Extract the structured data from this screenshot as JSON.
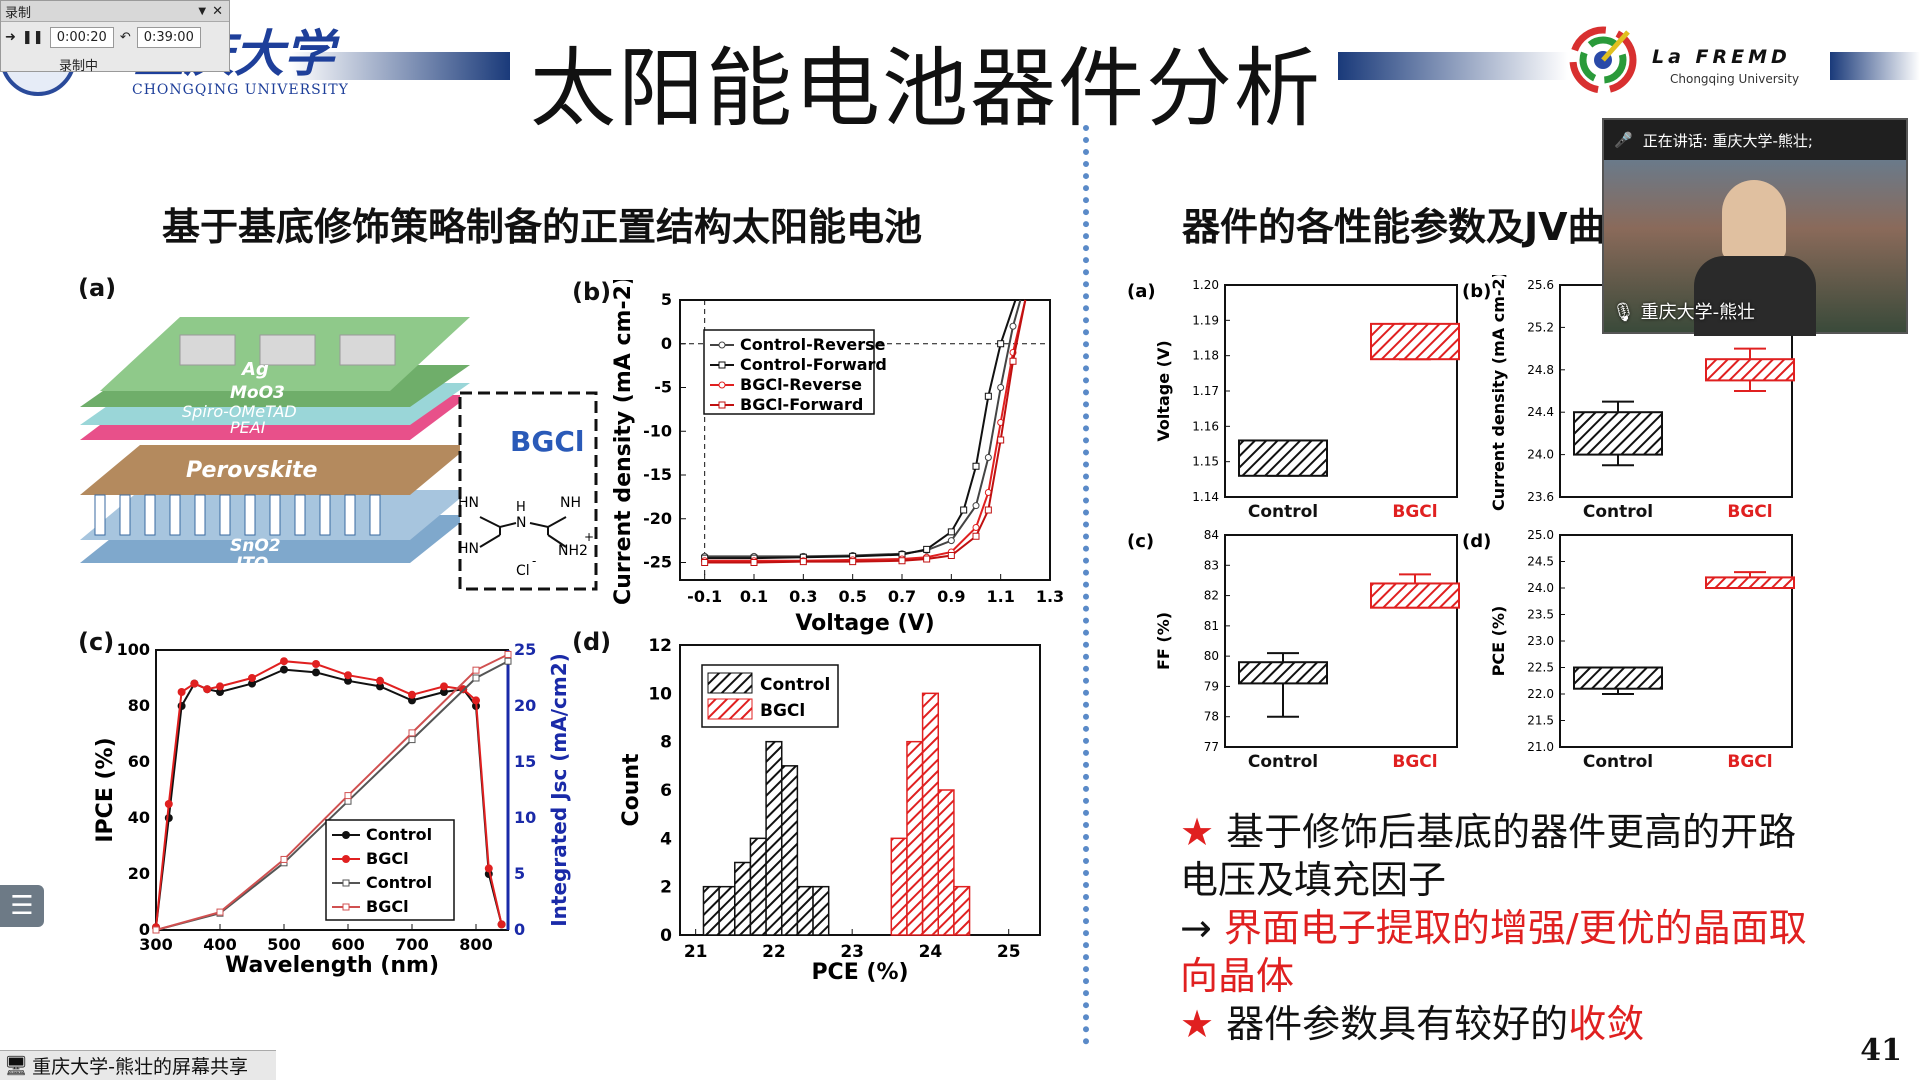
{
  "recorder": {
    "title": "录制",
    "elapsed": "0:00:20",
    "total": "0:39:00",
    "status": "录制中"
  },
  "header": {
    "university_cn": "重庆大学",
    "university_en": "CHONGQING UNIVERSITY",
    "title": "太阳能电池器件分析",
    "lab_name": "La FREMD",
    "lab_sub": "Chongqing University"
  },
  "left_subtitle": "基于基底修饰策略制备的正置结构太阳能电池",
  "right_subtitle": "器件的各性能参数及JV曲",
  "panel_a": {
    "label": "(a)",
    "layers": [
      "Ag",
      "MoO3",
      "Spiro-OMeTAD",
      "PEAI",
      "Perovskite",
      "SnO2",
      "ITO"
    ],
    "molecule": "BGCl",
    "chem": [
      "HN",
      "H",
      "N",
      "NH",
      "HN",
      "NH2",
      "+",
      "Cl",
      "-"
    ]
  },
  "panel_b": {
    "label": "(b)",
    "xlabel": "Voltage (V)",
    "ylabel": "Current density (mA cm",
    "ylabel_sup": "-2",
    "ylabel_end": ")",
    "xticks": [
      "-0.1",
      "0.1",
      "0.3",
      "0.5",
      "0.7",
      "0.9",
      "1.1",
      "1.3"
    ],
    "yticks": [
      "5",
      "0",
      "-5",
      "-10",
      "-15",
      "-20",
      "-25"
    ],
    "legend": [
      "Control-Reverse",
      "Control-Forward",
      "BGCl-Reverse",
      "BGCl-Forward"
    ]
  },
  "panel_c": {
    "label": "(c)",
    "xlabel": "Wavelength (nm)",
    "ylabel": "IPCE (%)",
    "y2label": "Integrated Jsc (mA/cm",
    "y2label_sup": "2",
    "y2label_end": ")",
    "xticks": [
      "300",
      "400",
      "500",
      "600",
      "700",
      "800"
    ],
    "yticks": [
      "0",
      "20",
      "40",
      "60",
      "80",
      "100"
    ],
    "y2ticks": [
      "0",
      "5",
      "10",
      "15",
      "20",
      "25"
    ],
    "legend": [
      "Control",
      "BGCl",
      "Control",
      "BGCl"
    ]
  },
  "panel_d": {
    "label": "(d)",
    "xlabel": "PCE (%)",
    "ylabel": "Count",
    "xticks": [
      "21",
      "22",
      "23",
      "24",
      "25"
    ],
    "yticks": [
      "0",
      "2",
      "4",
      "6",
      "8",
      "10",
      "12"
    ],
    "legend": [
      "Control",
      "BGCl"
    ]
  },
  "box_plots": [
    {
      "label": "(a)",
      "ylabel": "Voltage (V)",
      "yticks": [
        "1.14",
        "1.15",
        "1.16",
        "1.17",
        "1.18",
        "1.19",
        "1.20"
      ],
      "categories": [
        "Control",
        "BGCl"
      ]
    },
    {
      "label": "(b)",
      "ylabel": "Current density (mA cm",
      "ylabel_sup": "-2",
      "ylabel_end": ")",
      "yticks": [
        "23.6",
        "24.0",
        "24.4",
        "24.8",
        "25.2",
        "25.6"
      ],
      "categories": [
        "Control",
        "BGCl"
      ]
    },
    {
      "label": "(c)",
      "ylabel": "FF (%)",
      "yticks": [
        "77",
        "78",
        "79",
        "80",
        "81",
        "82",
        "83",
        "84"
      ],
      "categories": [
        "Control",
        "BGCl"
      ]
    },
    {
      "label": "(d)",
      "ylabel": "PCE (%)",
      "yticks": [
        "21.0",
        "21.5",
        "22.0",
        "22.5",
        "23.0",
        "23.5",
        "24.0",
        "24.5",
        "25.0"
      ],
      "categories": [
        "Control",
        "BGCl"
      ]
    }
  ],
  "notes": {
    "star": "★",
    "line1": "基于修饰后基底的器件更高的开路电压及填充因子",
    "arrow": "→ ",
    "line2_red": "界面电子提取的增强/更优的晶面取向晶体",
    "line3_black": "器件参数具有较好的",
    "line3_red": "收敛"
  },
  "page_number": "41",
  "video": {
    "speaking": "正在讲话: 重庆大学-熊壮;",
    "name": "重庆大学-熊壮"
  },
  "share_label": "重庆大学-熊壮的屏幕共享",
  "chart_data": [
    {
      "type": "line",
      "title": "",
      "xlabel": "Voltage (V)",
      "ylabel": "Current density (mA cm-2)",
      "xlim": [
        -0.2,
        1.3
      ],
      "ylim": [
        -27,
        5
      ],
      "series": [
        {
          "name": "Control-Reverse",
          "x": [
            -0.1,
            0.1,
            0.3,
            0.5,
            0.7,
            0.8,
            0.9,
            1.0,
            1.05,
            1.1,
            1.15,
            1.18
          ],
          "y": [
            -24.3,
            -24.3,
            -24.3,
            -24.2,
            -24.0,
            -23.6,
            -22.5,
            -18.5,
            -13,
            -5,
            2,
            5
          ]
        },
        {
          "name": "Control-Forward",
          "x": [
            -0.1,
            0.1,
            0.3,
            0.5,
            0.7,
            0.8,
            0.9,
            0.95,
            1.0,
            1.05,
            1.1,
            1.16
          ],
          "y": [
            -24.5,
            -24.5,
            -24.4,
            -24.3,
            -24.1,
            -23.5,
            -21.5,
            -19,
            -14,
            -6,
            0,
            5
          ]
        },
        {
          "name": "BGCl-Reverse",
          "x": [
            -0.1,
            0.1,
            0.3,
            0.5,
            0.7,
            0.8,
            0.9,
            1.0,
            1.05,
            1.1,
            1.15,
            1.2
          ],
          "y": [
            -24.8,
            -24.8,
            -24.8,
            -24.7,
            -24.6,
            -24.4,
            -23.8,
            -21,
            -17,
            -9,
            -1,
            5
          ]
        },
        {
          "name": "BGCl-Forward",
          "x": [
            -0.1,
            0.1,
            0.3,
            0.5,
            0.7,
            0.8,
            0.9,
            1.0,
            1.05,
            1.1,
            1.15,
            1.2
          ],
          "y": [
            -25.0,
            -25.0,
            -24.9,
            -24.9,
            -24.8,
            -24.6,
            -24.2,
            -22,
            -19,
            -11,
            -2,
            5
          ]
        }
      ]
    },
    {
      "type": "line",
      "title": "",
      "xlabel": "Wavelength (nm)",
      "ylabel": "IPCE (%)",
      "y2label": "Integrated Jsc (mA/cm2)",
      "xlim": [
        300,
        850
      ],
      "ylim": [
        0,
        100
      ],
      "y2lim": [
        0,
        25
      ],
      "series": [
        {
          "name": "Control",
          "axis": "left",
          "x": [
            300,
            320,
            340,
            360,
            380,
            400,
            450,
            500,
            550,
            600,
            650,
            700,
            750,
            780,
            800,
            820,
            840
          ],
          "y": [
            1,
            40,
            80,
            88,
            86,
            85,
            88,
            93,
            92,
            89,
            87,
            82,
            85,
            86,
            80,
            20,
            2
          ]
        },
        {
          "name": "BGCl",
          "axis": "left",
          "x": [
            300,
            320,
            340,
            360,
            380,
            400,
            450,
            500,
            550,
            600,
            650,
            700,
            750,
            780,
            800,
            820,
            840
          ],
          "y": [
            1,
            45,
            85,
            88,
            86,
            87,
            90,
            96,
            95,
            91,
            89,
            84,
            87,
            86,
            82,
            22,
            2
          ]
        },
        {
          "name": "Control",
          "axis": "right",
          "x": [
            300,
            400,
            500,
            600,
            700,
            800,
            850
          ],
          "y": [
            0,
            1.5,
            6,
            11.5,
            17,
            22.5,
            24.0
          ]
        },
        {
          "name": "BGCl",
          "axis": "right",
          "x": [
            300,
            400,
            500,
            600,
            700,
            800,
            850
          ],
          "y": [
            0,
            1.6,
            6.3,
            12,
            17.6,
            23.2,
            24.6
          ]
        }
      ]
    },
    {
      "type": "bar",
      "title": "",
      "xlabel": "PCE (%)",
      "ylabel": "Count",
      "ylim": [
        0,
        12
      ],
      "series": [
        {
          "name": "Control",
          "x": [
            21.2,
            21.4,
            21.6,
            21.8,
            22.0,
            22.2,
            22.4,
            22.6
          ],
          "values": [
            2,
            2,
            3,
            4,
            8,
            7,
            2,
            2
          ]
        },
        {
          "name": "BGCl",
          "x": [
            23.6,
            23.8,
            24.0,
            24.2,
            24.4
          ],
          "values": [
            4,
            8,
            10,
            6,
            2
          ]
        }
      ]
    },
    {
      "type": "box",
      "ylabel": "Voltage (V)",
      "ylim": [
        1.14,
        1.2
      ],
      "categories": [
        "Control",
        "BGCl"
      ],
      "boxes": [
        {
          "q1": 1.146,
          "q3": 1.156,
          "min": 1.146,
          "max": 1.156
        },
        {
          "q1": 1.179,
          "q3": 1.189,
          "min": 1.179,
          "max": 1.189
        }
      ]
    },
    {
      "type": "box",
      "ylabel": "Current density (mA cm-2)",
      "ylim": [
        23.6,
        25.6
      ],
      "categories": [
        "Control",
        "BGCl"
      ],
      "boxes": [
        {
          "q1": 24.0,
          "q3": 24.4,
          "min": 23.9,
          "max": 24.5
        },
        {
          "q1": 24.7,
          "q3": 24.9,
          "min": 24.6,
          "max": 25.0
        }
      ]
    },
    {
      "type": "box",
      "ylabel": "FF (%)",
      "ylim": [
        77,
        84
      ],
      "categories": [
        "Control",
        "BGCl"
      ],
      "boxes": [
        {
          "q1": 79.1,
          "q3": 79.8,
          "min": 78.0,
          "max": 80.1
        },
        {
          "q1": 81.6,
          "q3": 82.4,
          "min": 81.6,
          "max": 82.7
        }
      ]
    },
    {
      "type": "box",
      "ylabel": "PCE (%)",
      "ylim": [
        21.0,
        25.0
      ],
      "categories": [
        "Control",
        "BGCl"
      ],
      "boxes": [
        {
          "q1": 22.1,
          "q3": 22.5,
          "min": 22.0,
          "max": 22.5
        },
        {
          "q1": 24.0,
          "q3": 24.2,
          "min": 24.0,
          "max": 24.3
        }
      ]
    }
  ]
}
